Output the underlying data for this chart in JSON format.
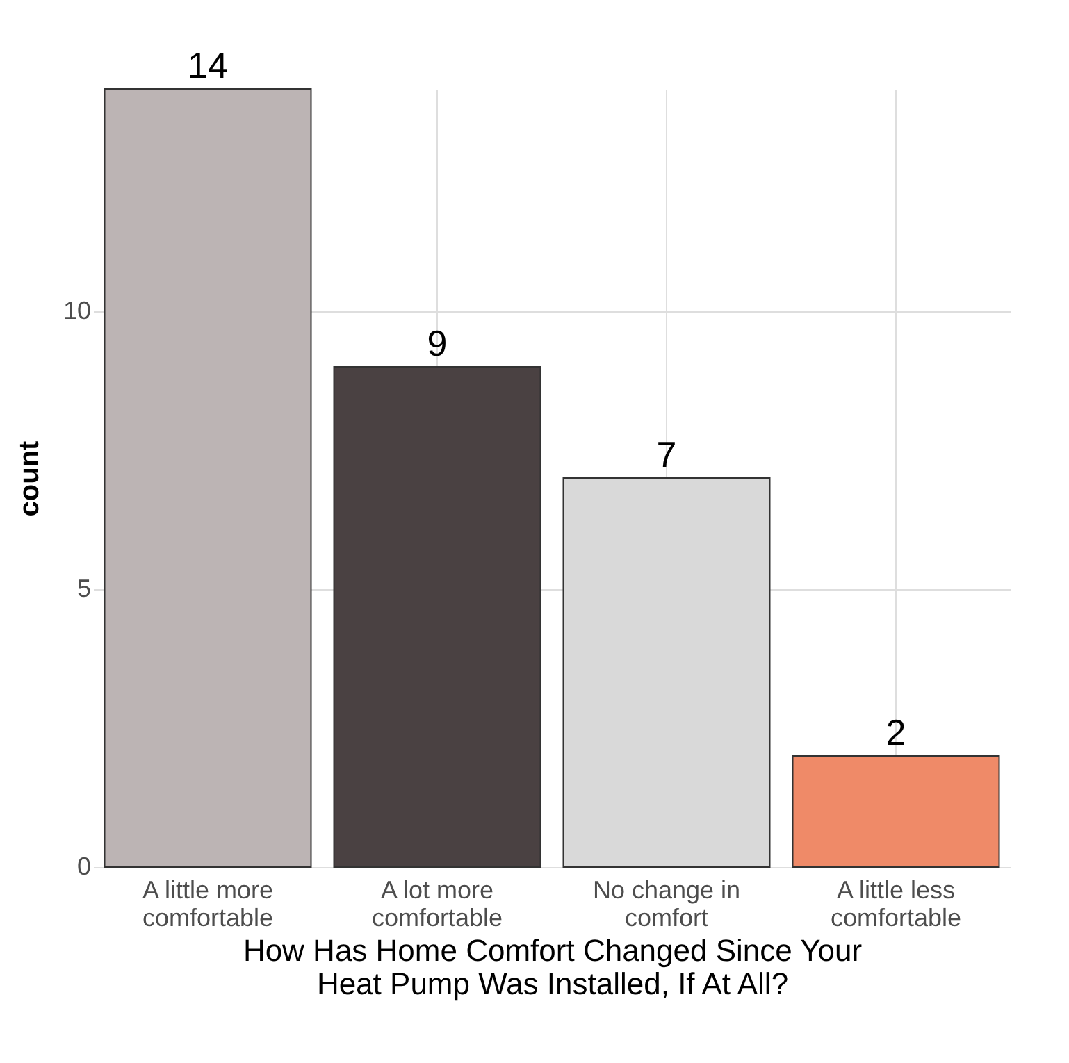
{
  "chart_data": {
    "type": "bar",
    "categories": [
      "A little more comfortable",
      "A lot more comfortable",
      "No change in comfort",
      "A little less comfortable"
    ],
    "values": [
      14,
      9,
      7,
      2
    ],
    "colors": [
      "#bcb4b4",
      "#4a4142",
      "#d9d9d9",
      "#ef8a68"
    ],
    "data_labels": true,
    "xlabel": "How Has Home Comfort Changed Since Your Heat Pump Was Installed, If At All?",
    "ylabel": "count",
    "ylim": [
      0,
      14
    ],
    "yticks": [
      0,
      5,
      10
    ],
    "grid": true
  }
}
